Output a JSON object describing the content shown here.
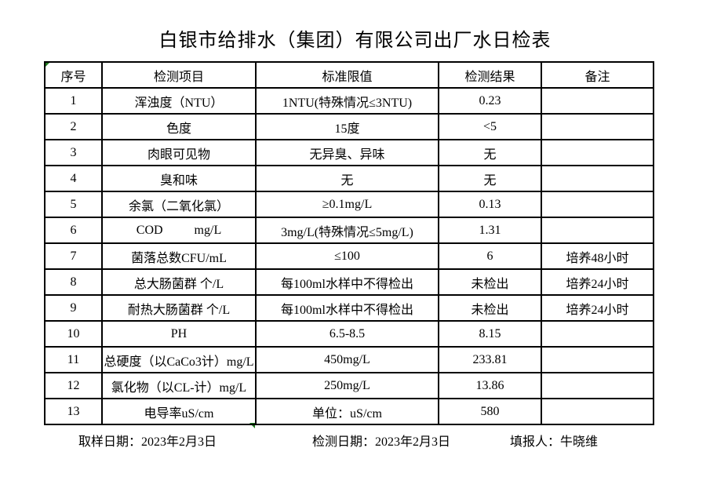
{
  "page": {
    "title": "白银市给排水（集团）有限公司出厂水日检表",
    "background_color": "#ffffff",
    "text_color": "#000000",
    "border_color": "#000000",
    "marker_color": "#1e7b1e"
  },
  "table": {
    "columns": [
      "序号",
      "检测项目",
      "标准限值",
      "检测结果",
      "备注"
    ],
    "rows": [
      {
        "no": "1",
        "item": "浑浊度（NTU）",
        "standard": "1NTU(特殊情况≤3NTU)",
        "result": "0.23",
        "remark": ""
      },
      {
        "no": "2",
        "item": "色度",
        "standard": "15度",
        "result": "<5",
        "remark": ""
      },
      {
        "no": "3",
        "item": "肉眼可见物",
        "standard": "无异臭、异味",
        "result": "无",
        "remark": ""
      },
      {
        "no": "4",
        "item": "臭和味",
        "standard": "无",
        "result": "无",
        "remark": ""
      },
      {
        "no": "5",
        "item": "余氯（二氧化氯）",
        "standard": "≥0.1mg/L",
        "result": "0.13",
        "remark": ""
      },
      {
        "no": "6",
        "item": "COD          mg/L",
        "standard": "3mg/L(特殊情况≤5mg/L)",
        "result": "1.31",
        "remark": ""
      },
      {
        "no": "7",
        "item": "菌落总数CFU/mL",
        "standard": "≤100",
        "result": "6",
        "remark": "培养48小时"
      },
      {
        "no": "8",
        "item": "总大肠菌群 个/L",
        "standard": "每100ml水样中不得检出",
        "result": "未检出",
        "remark": "培养24小时"
      },
      {
        "no": "9",
        "item": "耐热大肠菌群 个/L",
        "standard": "每100ml水样中不得检出",
        "result": "未检出",
        "remark": "培养24小时"
      },
      {
        "no": "10",
        "item": "PH",
        "standard": "6.5-8.5",
        "result": "8.15",
        "remark": ""
      },
      {
        "no": "11",
        "item": "总硬度（以CaCo3计）mg/L",
        "standard": "450mg/L",
        "result": "233.81",
        "remark": ""
      },
      {
        "no": "12",
        "item": "氯化物（以CL-计）mg/L",
        "standard": "250mg/L",
        "result": "13.86",
        "remark": ""
      },
      {
        "no": "13",
        "item": "电导率uS/cm",
        "standard": "单位：uS/cm",
        "result": "580",
        "remark": ""
      }
    ]
  },
  "footer": {
    "sampling_date": "取样日期：2023年2月3日",
    "test_date": "检测日期：2023年2月3日",
    "reporter": "填报人：牛晓维"
  }
}
